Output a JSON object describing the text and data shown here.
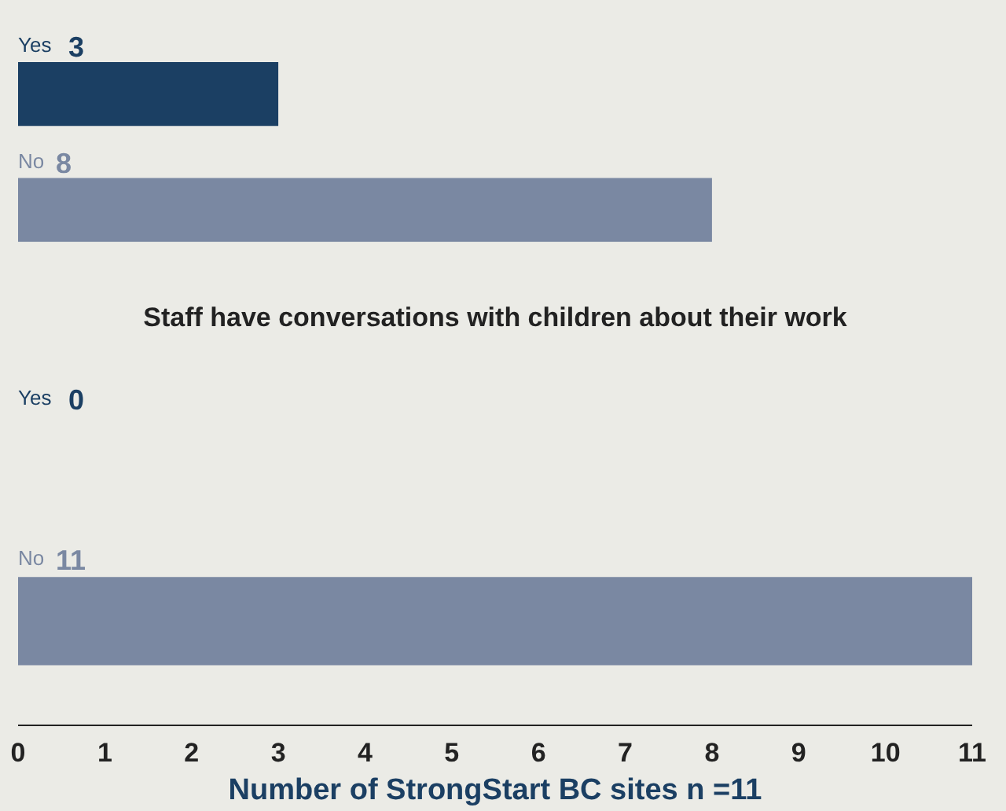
{
  "chart_data": [
    {
      "type": "bar",
      "orientation": "horizontal",
      "categories": [
        "Yes",
        "No"
      ],
      "values": [
        3,
        8
      ],
      "colors": [
        "#1b3f63",
        "#7a88a2"
      ],
      "xlim": [
        0,
        11
      ],
      "data_labels": true,
      "tick_labels": false
    },
    {
      "type": "bar",
      "orientation": "horizontal",
      "title": "Staff have conversations with children about their work",
      "xlabel": "Number of StrongStart BC sites n =11",
      "categories": [
        "Yes",
        "No"
      ],
      "values": [
        0,
        11
      ],
      "colors": [
        "#1b3f63",
        "#7a88a2"
      ],
      "xlim": [
        0,
        11
      ],
      "xticks": [
        0,
        1,
        2,
        3,
        4,
        5,
        6,
        7,
        8,
        9,
        10,
        11
      ],
      "data_labels": true,
      "tick_labels": "x"
    }
  ]
}
